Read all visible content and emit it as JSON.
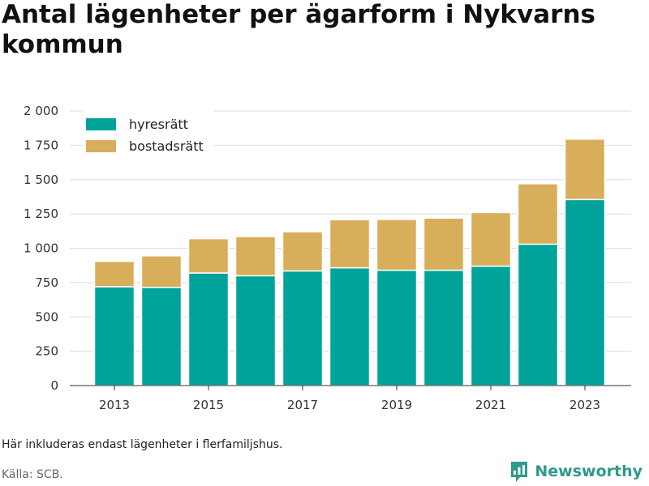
{
  "title": "Antal lägenheter per ägarform i Nykvarns kommun",
  "note": "Här inkluderas endast lägenheter i flerfamiljshus.",
  "source": "Källa: SCB.",
  "brand": "Newsworthy",
  "colors": {
    "hyresratt": "#00a39a",
    "bostadsratt": "#d9ae5a",
    "grid": "#dddddd",
    "brand": "#2e9a8b"
  },
  "chart_data": {
    "type": "bar",
    "stacked": true,
    "categories": [
      "2013",
      "2014",
      "2015",
      "2016",
      "2017",
      "2018",
      "2019",
      "2020",
      "2021",
      "2022",
      "2023"
    ],
    "x_tick_labels": [
      "2013",
      "2015",
      "2017",
      "2019",
      "2021",
      "2023"
    ],
    "y_ticks": [
      0,
      250,
      500,
      750,
      1000,
      1250,
      1500,
      1750,
      2000
    ],
    "y_tick_labels": [
      "0",
      "250",
      "500",
      "750",
      "1 000",
      "1 250",
      "1 500",
      "1 750",
      "2 000"
    ],
    "ylim": [
      0,
      2000
    ],
    "grid": true,
    "legend_position": "top-left",
    "series": [
      {
        "name": "hyresrätt",
        "color": "#00a39a",
        "values": [
          720,
          715,
          820,
          800,
          835,
          858,
          840,
          840,
          870,
          1030,
          1355
        ]
      },
      {
        "name": "bostadsrätt",
        "color": "#d9ae5a",
        "values": [
          185,
          230,
          250,
          285,
          285,
          350,
          370,
          380,
          390,
          440,
          440
        ]
      }
    ]
  }
}
